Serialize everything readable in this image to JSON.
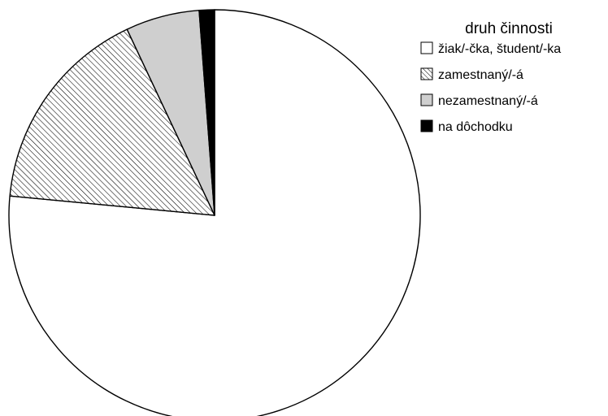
{
  "chart_data": {
    "type": "pie",
    "legend_title": "druh činnosti",
    "legend_position": "top-right",
    "start": "12 o'clock",
    "direction": "clockwise",
    "slices": [
      {
        "label": "žiak/-čka, študent/-ka",
        "value": 76.5,
        "fill": "white"
      },
      {
        "label": "zamestnaný/-á",
        "value": 16.5,
        "fill": "diagonal-hatch"
      },
      {
        "label": "nezamestnaný/-á",
        "value": 5.8,
        "fill": "light-gray"
      },
      {
        "label": "na dôchodku",
        "value": 1.2,
        "fill": "black"
      }
    ]
  },
  "colors": {
    "slice_white": "#ffffff",
    "slice_hatch_line": "#000000",
    "slice_gray": "#cfcfcf",
    "slice_black": "#000000",
    "outline": "#000000"
  }
}
